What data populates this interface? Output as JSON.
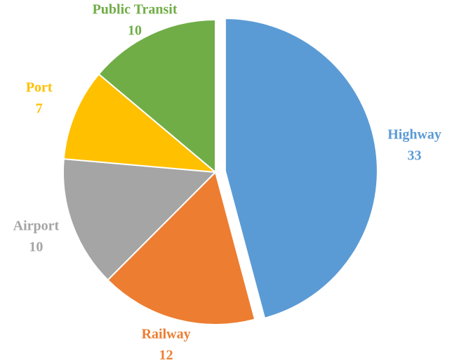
{
  "chart_data": {
    "type": "pie",
    "categories": [
      "Highway",
      "Railway",
      "Airport",
      "Port",
      "Public Transit"
    ],
    "values": [
      33,
      12,
      10,
      7,
      10
    ],
    "colors": [
      "#5b9bd5",
      "#ed7d31",
      "#a5a5a5",
      "#ffc000",
      "#70ad47"
    ],
    "exploded": [
      true,
      false,
      false,
      false,
      false
    ]
  }
}
